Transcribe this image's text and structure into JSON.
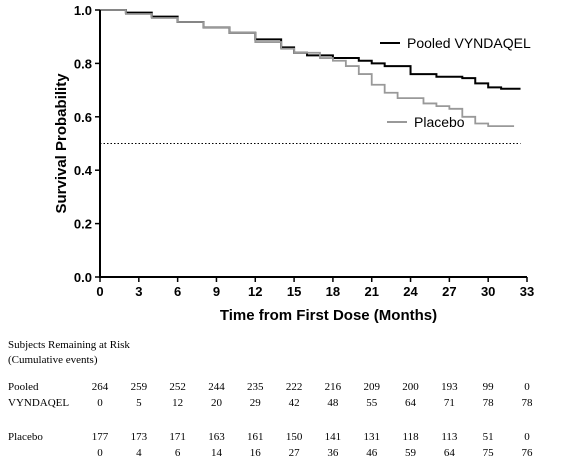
{
  "chart_data": {
    "type": "line",
    "title": "",
    "xlabel": "Time from First Dose (Months)",
    "ylabel": "Survival Probability",
    "xlim": [
      0,
      33
    ],
    "ylim": [
      0.0,
      1.0
    ],
    "x_ticks": [
      "0",
      "3",
      "6",
      "9",
      "12",
      "15",
      "18",
      "21",
      "24",
      "27",
      "30",
      "33"
    ],
    "y_ticks": [
      "0.0",
      "0.2",
      "0.4",
      "0.6",
      "0.8",
      "1.0"
    ],
    "reference_line": {
      "y": 0.5,
      "style": "dotted"
    },
    "series": [
      {
        "name": "Pooled VYNDAQEL",
        "color": "#000000",
        "points": [
          [
            0,
            1.0
          ],
          [
            2,
            0.99
          ],
          [
            4,
            0.975
          ],
          [
            6,
            0.955
          ],
          [
            8,
            0.935
          ],
          [
            10,
            0.915
          ],
          [
            12,
            0.89
          ],
          [
            14,
            0.86
          ],
          [
            15,
            0.84
          ],
          [
            16,
            0.83
          ],
          [
            18,
            0.82
          ],
          [
            20,
            0.81
          ],
          [
            21,
            0.8
          ],
          [
            22,
            0.79
          ],
          [
            24,
            0.76
          ],
          [
            26,
            0.75
          ],
          [
            28,
            0.745
          ],
          [
            29,
            0.725
          ],
          [
            30,
            0.71
          ],
          [
            31,
            0.705
          ],
          [
            32.5,
            0.705
          ]
        ]
      },
      {
        "name": "Placebo",
        "color": "#999999",
        "points": [
          [
            0,
            1.0
          ],
          [
            2,
            0.985
          ],
          [
            4,
            0.97
          ],
          [
            6,
            0.955
          ],
          [
            8,
            0.935
          ],
          [
            10,
            0.915
          ],
          [
            12,
            0.88
          ],
          [
            14,
            0.855
          ],
          [
            15,
            0.84
          ],
          [
            17,
            0.82
          ],
          [
            18,
            0.81
          ],
          [
            19,
            0.79
          ],
          [
            20,
            0.76
          ],
          [
            21,
            0.72
          ],
          [
            22,
            0.69
          ],
          [
            23,
            0.67
          ],
          [
            25,
            0.65
          ],
          [
            26,
            0.64
          ],
          [
            27,
            0.63
          ],
          [
            28,
            0.6
          ],
          [
            29,
            0.575
          ],
          [
            30,
            0.565
          ],
          [
            31,
            0.565
          ],
          [
            32,
            0.565
          ]
        ]
      }
    ],
    "legend": [
      {
        "label": "Pooled  VYNDAQEL",
        "series": "Pooled VYNDAQEL"
      },
      {
        "label": "Placebo",
        "series": "Placebo"
      }
    ]
  },
  "risk_table": {
    "title_line1": "Subjects Remaining at Risk",
    "title_line2": "(Cumulative events)",
    "rows": [
      {
        "label_line1": "Pooled",
        "label_line2": "VYNDAQEL",
        "at_risk": [
          "264",
          "259",
          "252",
          "244",
          "235",
          "222",
          "216",
          "209",
          "200",
          "193",
          "99",
          "0"
        ],
        "events": [
          "0",
          "5",
          "12",
          "20",
          "29",
          "42",
          "48",
          "55",
          "64",
          "71",
          "78",
          "78"
        ]
      },
      {
        "label_line1": "Placebo",
        "label_line2": "",
        "at_risk": [
          "177",
          "173",
          "171",
          "163",
          "161",
          "150",
          "141",
          "131",
          "118",
          "113",
          "51",
          "0"
        ],
        "events": [
          "0",
          "4",
          "6",
          "14",
          "16",
          "27",
          "36",
          "46",
          "59",
          "64",
          "75",
          "76"
        ]
      }
    ]
  }
}
